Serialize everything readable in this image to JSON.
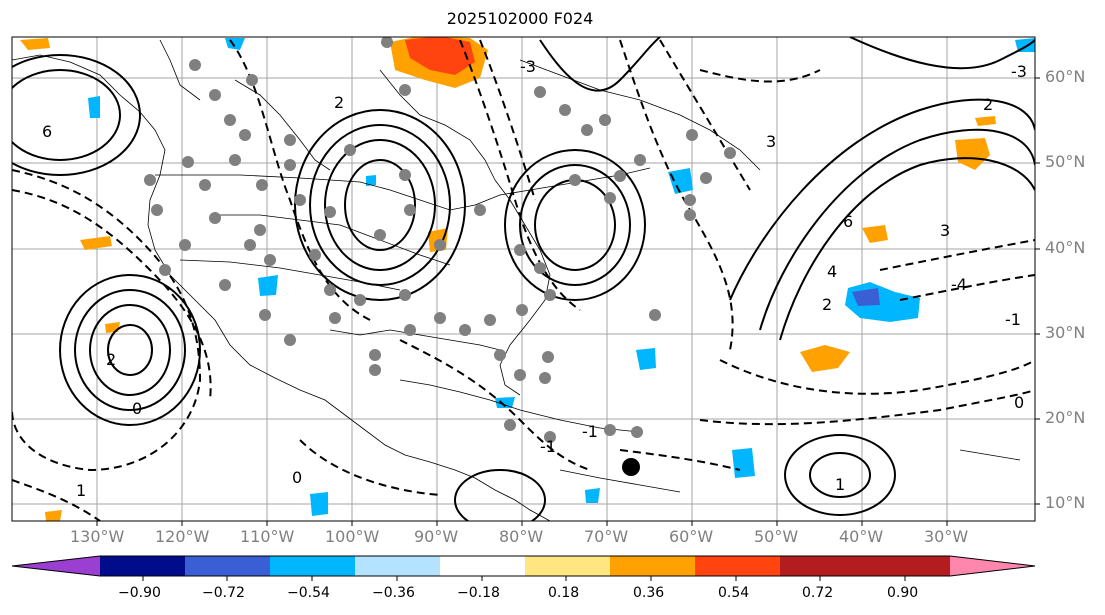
{
  "title": "2025102000 F024",
  "latitude_labels": [
    "60°N",
    "50°N",
    "40°N",
    "30°N",
    "20°N",
    "10°N"
  ],
  "longitude_labels": [
    "130°W",
    "120°W",
    "110°W",
    "100°W",
    "90°W",
    "80°W",
    "70°W",
    "60°W",
    "50°W",
    "40°W",
    "30°W"
  ],
  "colorbar": {
    "ticks": [
      "−0.90",
      "−0.72",
      "−0.54",
      "−0.36",
      "−0.18",
      "0.18",
      "0.36",
      "0.54",
      "0.72",
      "0.90"
    ],
    "colors": {
      "under": "#9b3fd2",
      "b1": "#000c8a",
      "b2": "#3a5fd4",
      "b3": "#00b7ff",
      "b4": "#b3e3ff",
      "b5": "#ffffff",
      "b6": "#ffe680",
      "b7": "#ffa100",
      "b8": "#ff4410",
      "b9": "#b31d20",
      "over": "#ff86ad"
    }
  },
  "contour_labels": [
    "6",
    "2",
    "-3",
    "-1",
    "0",
    "1",
    "2",
    "3",
    "4",
    "-4",
    "6",
    "0",
    "2",
    "-1",
    "2",
    "1",
    "-1",
    "-3",
    "3",
    "0"
  ]
}
